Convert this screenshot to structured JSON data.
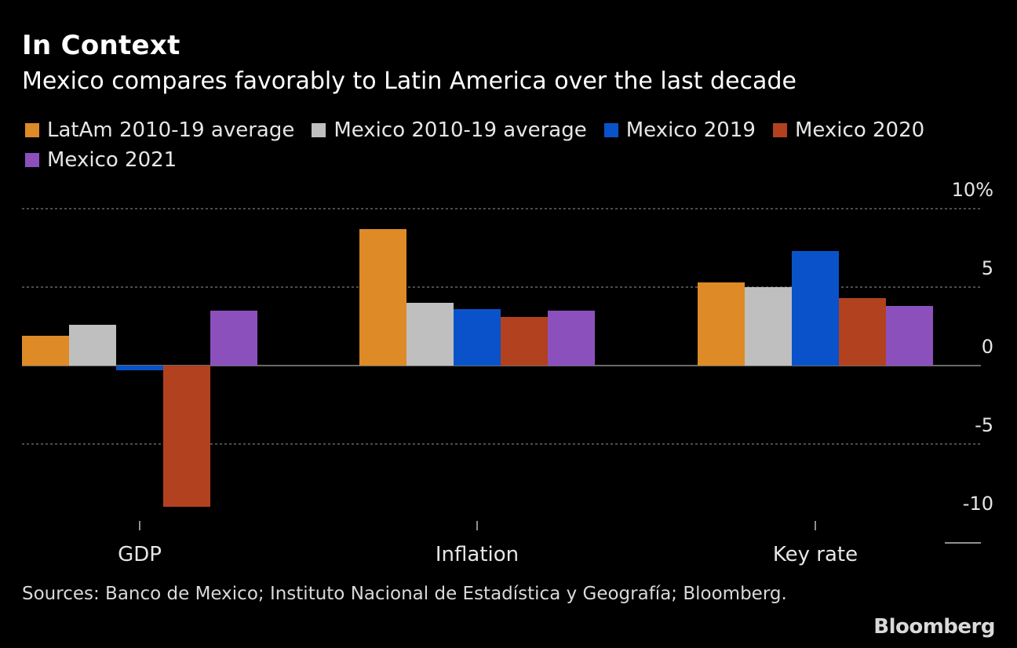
{
  "title": "In Context",
  "subtitle": "Mexico compares favorably to Latin America over the last decade",
  "source": "Sources: Banco de Mexico; Instituto Nacional de Estadística y Geografía; Bloomberg.",
  "logo": "Bloomberg",
  "chart_data": {
    "type": "bar",
    "title": "In Context",
    "subtitle": "Mexico compares favorably to Latin America over the last decade",
    "categories": [
      "GDP",
      "Inflation",
      "Key rate"
    ],
    "series": [
      {
        "name": "LatAm 2010-19 average",
        "color": "#dd8a27",
        "values": [
          1.9,
          8.7,
          5.3
        ]
      },
      {
        "name": "Mexico 2010-19 average",
        "color": "#bfbfbf",
        "values": [
          2.6,
          4.0,
          5.0
        ]
      },
      {
        "name": "Mexico 2019",
        "color": "#0a52c9",
        "values": [
          -0.3,
          3.6,
          7.3
        ]
      },
      {
        "name": "Mexico 2020",
        "color": "#b2411f",
        "values": [
          -9.0,
          3.1,
          4.3
        ]
      },
      {
        "name": "Mexico 2021",
        "color": "#8c50bd",
        "values": [
          3.5,
          3.5,
          3.8
        ]
      }
    ],
    "yticks": [
      "10%",
      "5",
      "0",
      "-5",
      "-10"
    ],
    "ytick_values": [
      10,
      5,
      0,
      -5,
      -10
    ],
    "ylim": [
      -10,
      10
    ],
    "grid": true,
    "legend_position": "top"
  }
}
